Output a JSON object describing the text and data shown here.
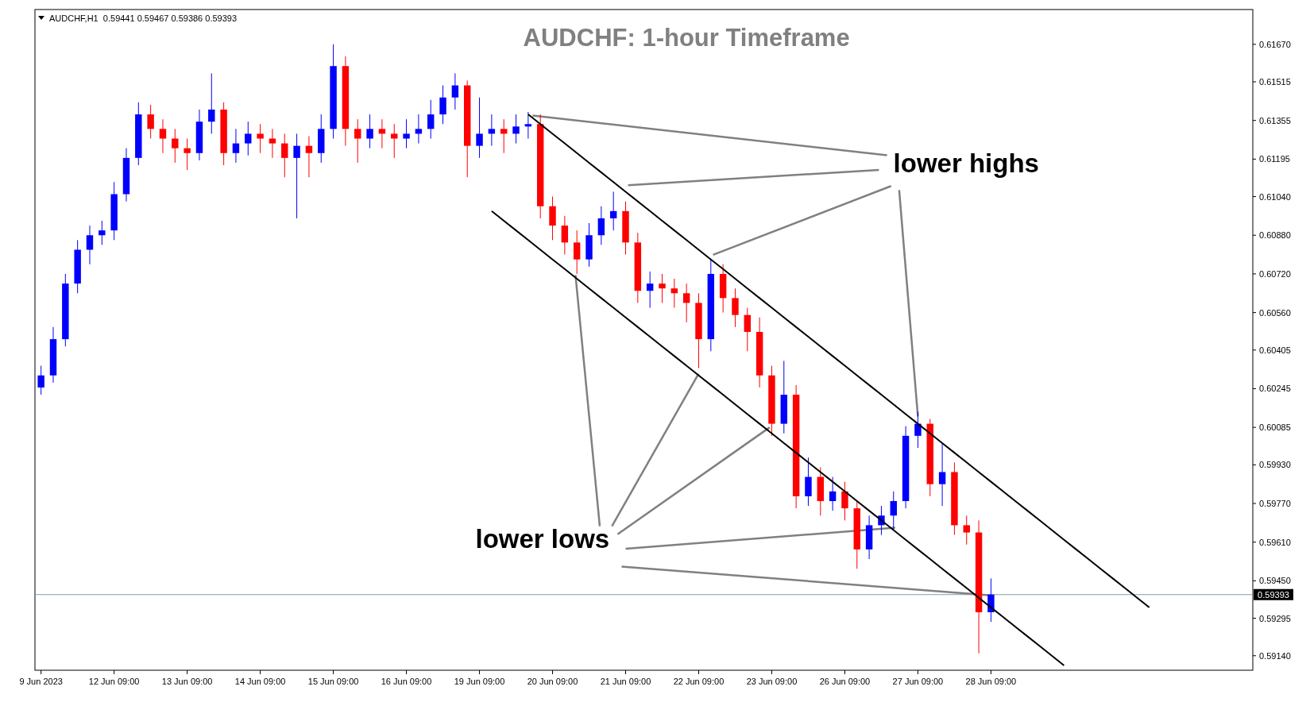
{
  "chart_data": {
    "type": "candlestick",
    "title": "AUDCHF: 1-hour Timeframe",
    "annotations": [
      "AUDCHF,H1  0.59441 0.59467 0.59386 0.59393",
      {
        "text": "lower highs",
        "x": "27 Jun 09:00",
        "y": 0.6013
      },
      {
        "text": "lower lows",
        "x": "28 Jun 09:00",
        "y": 0.5939
      }
    ],
    "categories": [
      "9 Jun 2023",
      null,
      null,
      null,
      null,
      null,
      "12 Jun 09:00",
      null,
      null,
      null,
      null,
      null,
      "13 Jun 09:00",
      null,
      null,
      null,
      null,
      null,
      "14 Jun 09:00",
      null,
      null,
      null,
      null,
      null,
      "15 Jun 09:00",
      null,
      null,
      null,
      null,
      null,
      "16 Jun 09:00",
      null,
      null,
      null,
      null,
      null,
      "19 Jun 09:00",
      null,
      null,
      null,
      null,
      null,
      "20 Jun 09:00",
      null,
      null,
      null,
      null,
      null,
      "21 Jun 09:00",
      null,
      null,
      null,
      null,
      null,
      "22 Jun 09:00",
      null,
      null,
      null,
      null,
      null,
      "23 Jun 09:00",
      null,
      null,
      null,
      null,
      null,
      "26 Jun 09:00",
      null,
      null,
      null,
      null,
      null,
      "27 Jun 09:00",
      null,
      null,
      null,
      null,
      null,
      "28 Jun 09:00",
      null,
      null,
      null,
      null,
      null,
      null,
      null,
      null,
      null,
      null,
      null,
      null,
      null,
      null,
      null,
      null,
      null,
      null,
      null,
      null,
      null
    ],
    "ohlc": [
      [
        0.6025,
        0.6034,
        0.6022,
        0.603
      ],
      [
        0.603,
        0.605,
        0.6027,
        0.6045
      ],
      [
        0.6045,
        0.6072,
        0.6042,
        0.6068
      ],
      [
        0.6068,
        0.6086,
        0.6064,
        0.6082
      ],
      [
        0.6082,
        0.6092,
        0.6076,
        0.6088
      ],
      [
        0.6088,
        0.6094,
        0.6084,
        0.609
      ],
      [
        0.609,
        0.611,
        0.6086,
        0.6105
      ],
      [
        0.6105,
        0.6124,
        0.6102,
        0.612
      ],
      [
        0.612,
        0.6143,
        0.6117,
        0.6138
      ],
      [
        0.6138,
        0.6142,
        0.6128,
        0.6132
      ],
      [
        0.6132,
        0.6136,
        0.6122,
        0.6128
      ],
      [
        0.6128,
        0.6132,
        0.6118,
        0.6124
      ],
      [
        0.6124,
        0.6128,
        0.6115,
        0.6122
      ],
      [
        0.6122,
        0.614,
        0.6119,
        0.6135
      ],
      [
        0.6135,
        0.6155,
        0.613,
        0.614
      ],
      [
        0.614,
        0.6143,
        0.6117,
        0.6122
      ],
      [
        0.6122,
        0.6132,
        0.6118,
        0.6126
      ],
      [
        0.6126,
        0.6135,
        0.6121,
        0.613
      ],
      [
        0.613,
        0.6134,
        0.6122,
        0.6128
      ],
      [
        0.6128,
        0.6132,
        0.612,
        0.6126
      ],
      [
        0.6126,
        0.613,
        0.6112,
        0.612
      ],
      [
        0.612,
        0.613,
        0.6095,
        0.6125
      ],
      [
        0.6125,
        0.6129,
        0.6112,
        0.6122
      ],
      [
        0.6122,
        0.6138,
        0.6118,
        0.6132
      ],
      [
        0.6132,
        0.6167,
        0.6128,
        0.6158
      ],
      [
        0.6158,
        0.6162,
        0.6125,
        0.6132
      ],
      [
        0.6132,
        0.6136,
        0.6118,
        0.6128
      ],
      [
        0.6128,
        0.6138,
        0.6124,
        0.6132
      ],
      [
        0.6132,
        0.6136,
        0.6124,
        0.613
      ],
      [
        0.613,
        0.6134,
        0.612,
        0.6128
      ],
      [
        0.6128,
        0.6136,
        0.6124,
        0.613
      ],
      [
        0.613,
        0.6138,
        0.6126,
        0.6132
      ],
      [
        0.6132,
        0.6144,
        0.6128,
        0.6138
      ],
      [
        0.6138,
        0.615,
        0.6134,
        0.6145
      ],
      [
        0.6145,
        0.6155,
        0.614,
        0.615
      ],
      [
        0.615,
        0.6152,
        0.6112,
        0.6125
      ],
      [
        0.6125,
        0.6145,
        0.612,
        0.613
      ],
      [
        0.613,
        0.6138,
        0.6125,
        0.6132
      ],
      [
        0.6132,
        0.6136,
        0.6122,
        0.613
      ],
      [
        0.613,
        0.6138,
        0.6126,
        0.6133
      ],
      [
        0.6133,
        0.6139,
        0.6128,
        0.6134
      ],
      [
        0.6134,
        0.6138,
        0.6095,
        0.61
      ],
      [
        0.61,
        0.6104,
        0.6086,
        0.6092
      ],
      [
        0.6092,
        0.6096,
        0.608,
        0.6085
      ],
      [
        0.6085,
        0.609,
        0.6072,
        0.6078
      ],
      [
        0.6078,
        0.6093,
        0.6075,
        0.6088
      ],
      [
        0.6088,
        0.61,
        0.6084,
        0.6095
      ],
      [
        0.6095,
        0.6106,
        0.609,
        0.6098
      ],
      [
        0.6098,
        0.6102,
        0.608,
        0.6085
      ],
      [
        0.6085,
        0.6089,
        0.606,
        0.6065
      ],
      [
        0.6065,
        0.6073,
        0.6058,
        0.6068
      ],
      [
        0.6068,
        0.6072,
        0.606,
        0.6066
      ],
      [
        0.6066,
        0.607,
        0.6058,
        0.6064
      ],
      [
        0.6064,
        0.6068,
        0.6052,
        0.606
      ],
      [
        0.606,
        0.6064,
        0.6033,
        0.6045
      ],
      [
        0.6045,
        0.6078,
        0.604,
        0.6072
      ],
      [
        0.6072,
        0.6076,
        0.6056,
        0.6062
      ],
      [
        0.6062,
        0.6066,
        0.605,
        0.6055
      ],
      [
        0.6055,
        0.6058,
        0.604,
        0.6048
      ],
      [
        0.6048,
        0.6054,
        0.6025,
        0.603
      ],
      [
        0.603,
        0.6034,
        0.6005,
        0.601
      ],
      [
        0.601,
        0.6036,
        0.6006,
        0.6022
      ],
      [
        0.6022,
        0.6026,
        0.5975,
        0.598
      ],
      [
        0.598,
        0.5996,
        0.5976,
        0.5988
      ],
      [
        0.5988,
        0.5992,
        0.5972,
        0.5978
      ],
      [
        0.5978,
        0.5988,
        0.5974,
        0.5982
      ],
      [
        0.5982,
        0.5986,
        0.597,
        0.5975
      ],
      [
        0.5975,
        0.5978,
        0.595,
        0.5958
      ],
      [
        0.5958,
        0.5972,
        0.5954,
        0.5968
      ],
      [
        0.5968,
        0.5976,
        0.5964,
        0.5972
      ],
      [
        0.5972,
        0.5982,
        0.5966,
        0.5978
      ],
      [
        0.5978,
        0.6009,
        0.5975,
        0.6005
      ],
      [
        0.6005,
        0.6015,
        0.6,
        0.601
      ],
      [
        0.601,
        0.6012,
        0.598,
        0.5985
      ],
      [
        0.5985,
        0.6002,
        0.5976,
        0.599
      ],
      [
        0.599,
        0.5994,
        0.5964,
        0.5968
      ],
      [
        0.5968,
        0.5972,
        0.596,
        0.5965
      ],
      [
        0.5965,
        0.597,
        0.5915,
        0.5932
      ],
      [
        0.5932,
        0.5946,
        0.5928,
        0.59393
      ],
      null,
      null,
      null,
      null,
      null,
      null,
      null,
      null,
      null,
      null,
      null,
      null,
      null,
      null,
      null,
      null,
      null,
      null,
      null,
      null,
      null
    ],
    "series": [
      {
        "type": "line",
        "color": "#000000",
        "values": [
          null,
          null,
          null,
          null,
          null,
          null,
          null,
          null,
          null,
          null,
          null,
          null,
          null,
          null,
          null,
          null,
          null,
          null,
          null,
          null,
          null,
          null,
          null,
          null,
          null,
          null,
          null,
          null,
          null,
          null,
          null,
          null,
          null,
          null,
          null,
          null,
          null,
          null,
          null,
          null,
          0.6138,
          0.6134,
          0.613,
          0.6126,
          0.6122,
          0.6118,
          0.6114,
          0.611,
          0.6106,
          0.6102,
          0.6098,
          0.6094,
          0.609,
          0.6086,
          0.6082,
          0.6078,
          0.6074,
          0.607,
          0.6066,
          0.6062,
          0.6058,
          0.6054,
          0.605,
          0.6046,
          0.6042,
          0.6038,
          0.6034,
          0.603,
          0.6026,
          0.6022,
          0.6018,
          0.6014,
          0.601,
          0.6006,
          0.6002,
          0.5998,
          0.5994,
          0.599,
          0.5986,
          0.5982,
          0.5978,
          0.5974,
          0.597,
          0.5966,
          0.5962,
          0.5958,
          0.5954,
          0.595,
          0.5946,
          0.5942,
          0.5938,
          0.5934,
          null,
          null,
          null,
          null,
          null,
          null,
          null,
          null
        ]
      },
      {
        "type": "line",
        "color": "#000000",
        "values": [
          null,
          null,
          null,
          null,
          null,
          null,
          null,
          null,
          null,
          null,
          null,
          null,
          null,
          null,
          null,
          null,
          null,
          null,
          null,
          null,
          null,
          null,
          null,
          null,
          null,
          null,
          null,
          null,
          null,
          null,
          null,
          null,
          null,
          null,
          null,
          null,
          null,
          0.6098,
          0.6094,
          0.609,
          0.6086,
          0.6082,
          0.6078,
          0.6074,
          0.607,
          0.6066,
          0.6062,
          0.6058,
          0.6054,
          0.605,
          0.6046,
          0.6042,
          0.6038,
          0.6034,
          0.603,
          0.6026,
          0.6022,
          0.6018,
          0.6014,
          0.601,
          0.6006,
          0.6002,
          0.5998,
          0.5994,
          0.599,
          0.5986,
          0.5982,
          0.5978,
          0.5974,
          0.597,
          0.5966,
          0.5962,
          0.5958,
          0.5954,
          0.595,
          0.5946,
          0.5942,
          0.5938,
          0.5934,
          0.593,
          0.5926,
          0.5922,
          0.5918,
          0.5914,
          0.591,
          null,
          null,
          null,
          null,
          null,
          null,
          null,
          null,
          null,
          null,
          null,
          null,
          null,
          null,
          null
        ]
      }
    ],
    "ylim": [
      0.5908,
      0.61814
    ],
    "yticks": [
      {
        "value": 0.6167,
        "label": "0.61670"
      },
      {
        "value": 0.61515,
        "label": "0.61515"
      },
      {
        "value": 0.61355,
        "label": "0.61355"
      },
      {
        "value": 0.61195,
        "label": "0.61195"
      },
      {
        "value": 0.6104,
        "label": "0.61040"
      },
      {
        "value": 0.6088,
        "label": "0.60880"
      },
      {
        "value": 0.6072,
        "label": "0.60720"
      },
      {
        "value": 0.6056,
        "label": "0.60560"
      },
      {
        "value": 0.60405,
        "label": "0.60405"
      },
      {
        "value": 0.60245,
        "label": "0.60245"
      },
      {
        "value": 0.60085,
        "label": "0.60085"
      },
      {
        "value": 0.5993,
        "label": "0.59930"
      },
      {
        "value": 0.5977,
        "label": "0.59770"
      },
      {
        "value": 0.5961,
        "label": "0.59610"
      },
      {
        "value": 0.5945,
        "label": "0.59450"
      },
      {
        "value": 0.59295,
        "label": "0.59295"
      },
      {
        "value": 0.5914,
        "label": "0.59140"
      }
    ],
    "ref_lines": [
      {
        "axis": "y",
        "value": 0.59393,
        "label": "0.59393",
        "color": "#7f9db9"
      }
    ],
    "grid": false
  }
}
